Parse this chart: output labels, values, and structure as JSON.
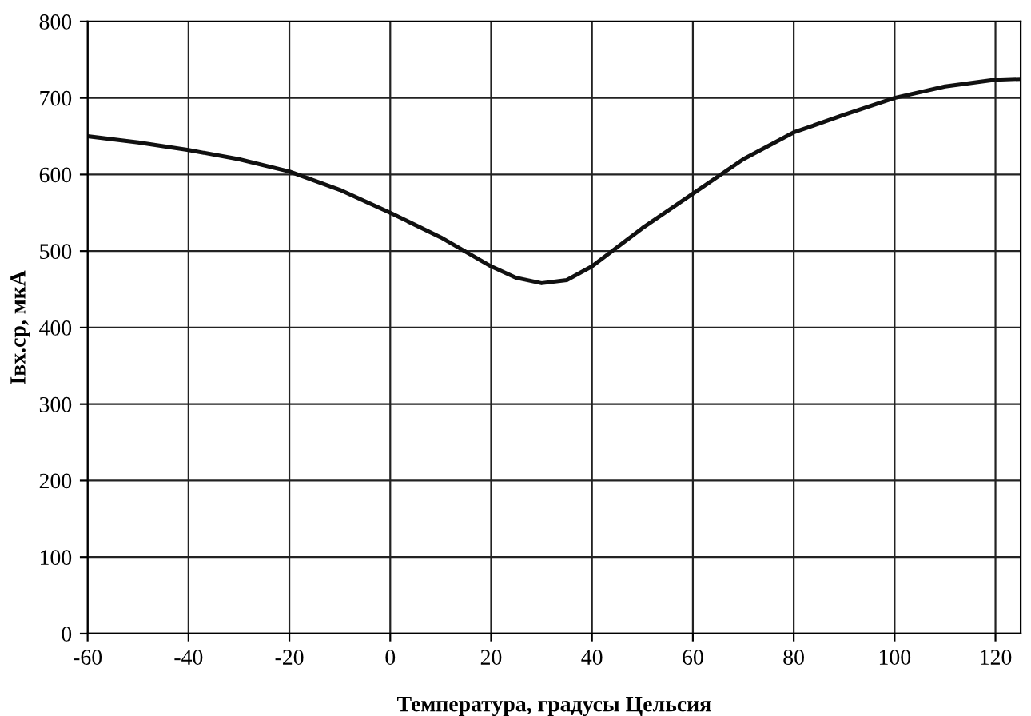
{
  "chart_data": {
    "type": "line",
    "xlabel": "Температура, градусы Цельсия",
    "ylabel": "Iвх.ср, мкА",
    "series": [
      {
        "color": "#111111",
        "x": [
          -60,
          -50,
          -40,
          -30,
          -20,
          -10,
          0,
          10,
          20,
          25,
          30,
          35,
          40,
          50,
          60,
          70,
          80,
          90,
          100,
          110,
          120,
          125
        ],
        "values": [
          650,
          642,
          632,
          620,
          604,
          580,
          550,
          518,
          480,
          465,
          458,
          462,
          480,
          530,
          575,
          620,
          655,
          678,
          700,
          715,
          724,
          725
        ]
      }
    ],
    "xlim": [
      -60,
      125
    ],
    "xticks": [
      -60,
      -40,
      -20,
      0,
      20,
      40,
      60,
      80,
      100,
      120
    ],
    "ylim": [
      0,
      800
    ],
    "yticks": [
      0,
      100,
      200,
      300,
      400,
      500,
      600,
      700,
      800
    ],
    "grid": true,
    "marker": "none",
    "line_style": "solid"
  }
}
